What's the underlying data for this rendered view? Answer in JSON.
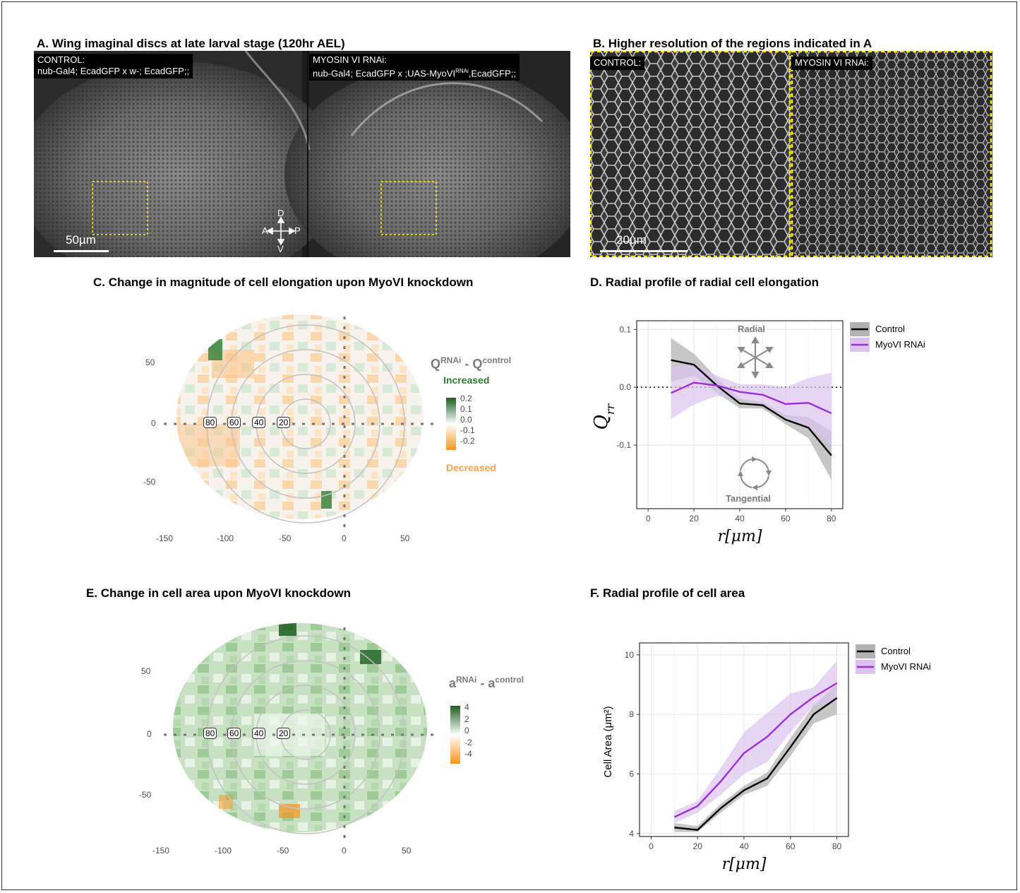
{
  "panels": {
    "A": {
      "title": "A. Wing imaginal discs at late larval stage (120hr AEL)",
      "control_label_1": "CONTROL:",
      "control_label_2": "nub-Gal4; EcadGFP x w-; EcadGFP;;",
      "rnai_label_1": "MYOSIN VI RNAi:",
      "rnai_label_2a": "nub-Gal4; EcadGFP x ;UAS-MyoVI",
      "rnai_label_2sup": "RNAi",
      "rnai_label_2b": ",EcadGFP;;",
      "scalebar": "50µm",
      "axes": {
        "d": "D",
        "v": "V",
        "a": "A",
        "p": "P"
      }
    },
    "B": {
      "title": "B. Higher resolution of the regions indicated in A",
      "control_label": "CONTROL:",
      "rnai_label": "MYOSIN VI RNAi:",
      "scalebar": "20µm"
    },
    "C": {
      "title": "C. Change in magnitude of cell elongation upon MyoVI knockdown",
      "legend_title_base": "Q",
      "legend_title_sup1": "RNAi",
      "legend_title_mid": " - Q",
      "legend_title_sup2": "control",
      "legend_increased": "Increased",
      "legend_decreased": "Decreased",
      "legend_ticks": [
        "0.2",
        "0.1",
        "0.0",
        "-0.1",
        "-0.2"
      ],
      "ring_labels": [
        "80",
        "60",
        "40",
        "20"
      ],
      "x_ticks": [
        "-150",
        "-100",
        "-50",
        "0",
        "50"
      ],
      "y_ticks": [
        "50",
        "0",
        "-50"
      ]
    },
    "D": {
      "title": "D. Radial profile of radial cell elongation",
      "radial_label": "Radial",
      "tangential_label": "Tangential"
    },
    "E": {
      "title": "E. Change in cell area upon MyoVI knockdown",
      "legend_title_base": "a",
      "legend_title_sup1": "RNAi",
      "legend_title_mid": " - a",
      "legend_title_sup2": "control",
      "legend_ticks": [
        "4",
        "2",
        "0",
        "-2",
        "-4"
      ],
      "ring_labels": [
        "80",
        "60",
        "40",
        "20"
      ],
      "x_ticks": [
        "-150",
        "-100",
        "-50",
        "0",
        "50"
      ],
      "y_ticks": [
        "50",
        "0",
        "-50"
      ]
    },
    "F": {
      "title": "F. Radial profile of cell area"
    }
  },
  "colors": {
    "control": "#000000",
    "rnai": "#9b30d9",
    "rnai_band": "#dcc3ef",
    "control_band": "#b3b3b3",
    "increased": "#2e7d32",
    "decreased": "#f7941d",
    "roi": "#ffee00"
  },
  "chart_data": [
    {
      "id": "D",
      "type": "line",
      "xlabel": "r[μm]",
      "ylabel": "Q_rr",
      "xlim": [
        -5,
        85
      ],
      "ylim": [
        -0.21,
        0.115
      ],
      "x_ticks": [
        0,
        20,
        40,
        60,
        80
      ],
      "y_ticks": [
        0.1,
        0.0,
        -0.1
      ],
      "y_tick_labels": [
        "0.1",
        "0.0",
        "-0.1"
      ],
      "hline": 0,
      "grid": true,
      "legend_position": "right",
      "x": [
        10,
        20,
        30,
        40,
        50,
        60,
        70,
        80
      ],
      "series": [
        {
          "name": "Control",
          "values": [
            0.047,
            0.039,
            0.003,
            -0.028,
            -0.031,
            -0.056,
            -0.07,
            -0.118
          ],
          "lower": [
            0.01,
            0.02,
            -0.01,
            -0.036,
            -0.037,
            -0.064,
            -0.088,
            -0.16
          ],
          "upper": [
            0.085,
            0.058,
            0.016,
            -0.02,
            -0.025,
            -0.048,
            -0.052,
            -0.076
          ]
        },
        {
          "name": "MyoVI RNAi",
          "values": [
            -0.01,
            0.008,
            0.003,
            -0.008,
            -0.013,
            -0.029,
            -0.027,
            -0.045
          ],
          "lower": [
            -0.055,
            -0.03,
            -0.015,
            -0.02,
            -0.03,
            -0.055,
            -0.07,
            -0.1
          ],
          "upper": [
            0.035,
            0.04,
            0.02,
            0.005,
            0.005,
            0.0,
            0.016,
            0.025
          ]
        }
      ]
    },
    {
      "id": "F",
      "type": "line",
      "xlabel": "r[μm]",
      "ylabel": "Cell Area (μm²)",
      "xlim": [
        -5,
        85
      ],
      "ylim": [
        3.9,
        10.4
      ],
      "x_ticks": [
        0,
        20,
        40,
        60,
        80
      ],
      "y_ticks": [
        4,
        6,
        8,
        10
      ],
      "y_tick_labels": [
        "4",
        "6",
        "8",
        "10"
      ],
      "grid": true,
      "legend_position": "right",
      "x": [
        10,
        20,
        30,
        40,
        50,
        60,
        70,
        80
      ],
      "series": [
        {
          "name": "Control",
          "values": [
            4.2,
            4.12,
            4.85,
            5.45,
            5.85,
            6.9,
            8.0,
            8.55
          ],
          "lower": [
            4.05,
            4.05,
            4.7,
            5.3,
            5.6,
            6.6,
            7.7,
            8.0
          ],
          "upper": [
            4.35,
            4.25,
            5.0,
            5.6,
            6.05,
            7.2,
            8.3,
            9.0
          ]
        },
        {
          "name": "MyoVI RNAi",
          "values": [
            4.55,
            4.92,
            5.75,
            6.7,
            7.25,
            8.0,
            8.58,
            9.05
          ],
          "lower": [
            4.35,
            4.7,
            5.3,
            6.0,
            6.4,
            7.4,
            8.3,
            8.4
          ],
          "upper": [
            4.75,
            5.1,
            6.2,
            7.4,
            8.05,
            8.7,
            8.9,
            9.8
          ]
        }
      ]
    }
  ]
}
